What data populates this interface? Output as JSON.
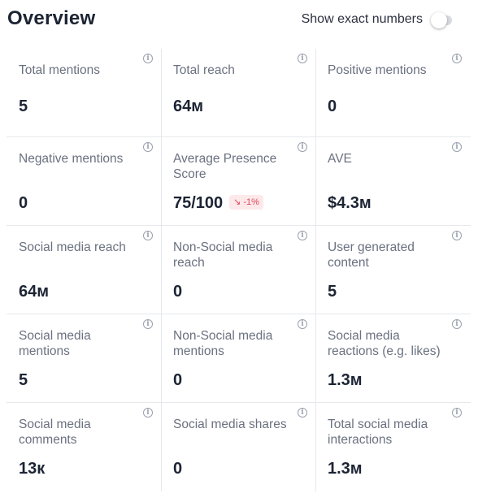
{
  "header": {
    "title": "Overview",
    "toggle_label": "Show exact numbers",
    "toggle_on": false
  },
  "metrics": [
    {
      "label": "Total mentions",
      "value": "5"
    },
    {
      "label": "Total reach",
      "value": "64м"
    },
    {
      "label": "Positive mentions",
      "value": "0"
    },
    {
      "label": "Negative mentions",
      "value": "0"
    },
    {
      "label": "Average Presence Score",
      "value": "75/100",
      "change": "-1%"
    },
    {
      "label": "AVE",
      "value": "$4.3м"
    },
    {
      "label": "Social media reach",
      "value": "64м"
    },
    {
      "label": "Non-Social media reach",
      "value": "0"
    },
    {
      "label": "User generated content",
      "value": "5"
    },
    {
      "label": "Social media mentions",
      "value": "5"
    },
    {
      "label": "Non-Social media mentions",
      "value": "0"
    },
    {
      "label": "Social media reactions (e.g. likes)",
      "value": "1.3м"
    },
    {
      "label": "Social media comments",
      "value": "13к"
    },
    {
      "label": "Social media shares",
      "value": "0"
    },
    {
      "label": "Total social media interactions",
      "value": "1.3м"
    }
  ],
  "colors": {
    "negative_change_bg": "#fde8ea",
    "negative_change_text": "#e0455a"
  }
}
